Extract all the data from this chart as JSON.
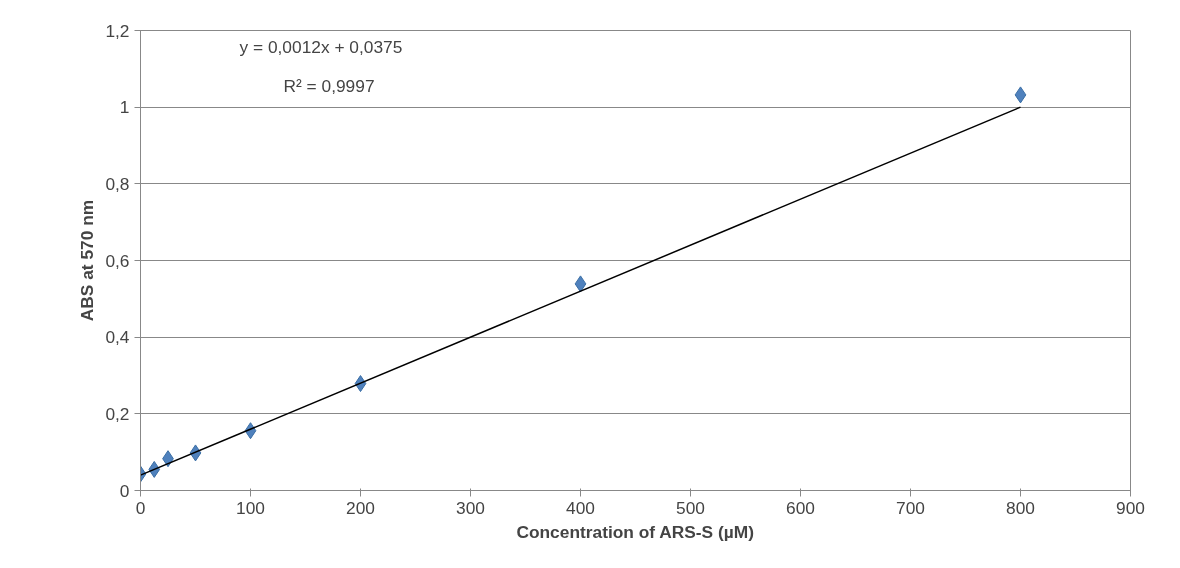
{
  "chart_data": {
    "type": "scatter",
    "xlabel": "Concentration of ARS-S (µM)",
    "ylabel": "ABS at 570 nm",
    "annotations": [
      "y = 0,0012x + 0,0375",
      "R² = 0,9997"
    ],
    "series": [
      {
        "color": "#4f81bd",
        "marker": "diamond",
        "x": [
          0,
          12.5,
          25,
          50,
          100,
          200,
          400,
          800
        ],
        "values": [
          0.043,
          0.055,
          0.083,
          0.098,
          0.156,
          0.279,
          0.539,
          1.032
        ]
      },
      {
        "type": "line",
        "color": "#000000",
        "marker": "none",
        "line_style": "solid",
        "x": [
          0,
          800
        ],
        "values": [
          0.04,
          1.0
        ]
      }
    ],
    "xlim": [
      0,
      900
    ],
    "xticks": [
      0,
      100,
      200,
      300,
      400,
      500,
      600,
      700,
      800,
      900
    ],
    "ylim": [
      0,
      1.2
    ],
    "yticks": [
      {
        "value": 0,
        "label": "0"
      },
      {
        "value": 0.2,
        "label": "0,2"
      },
      {
        "value": 0.4,
        "label": "0,4"
      },
      {
        "value": 0.6,
        "label": "0,6"
      },
      {
        "value": 0.8,
        "label": "0,8"
      },
      {
        "value": 1,
        "label": "1"
      },
      {
        "value": 1.2,
        "label": "1,2"
      }
    ],
    "grid": "y"
  }
}
